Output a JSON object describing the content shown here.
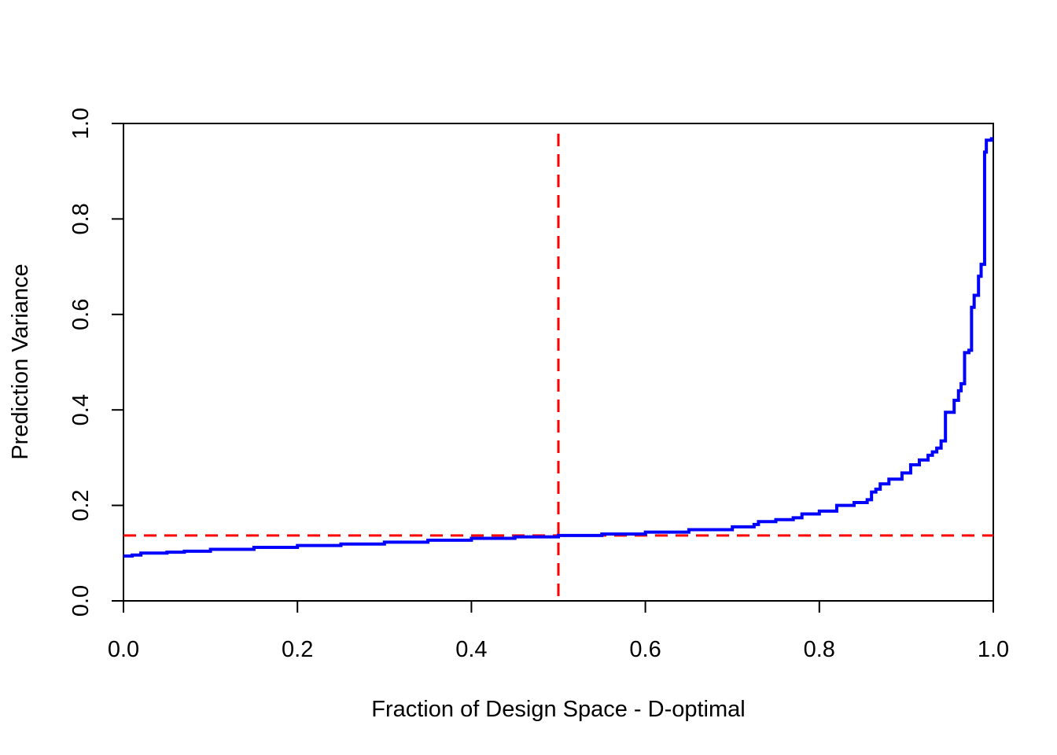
{
  "chart_data": {
    "type": "line",
    "title": "",
    "xlabel": "Fraction of Design Space - D-optimal",
    "ylabel": "Prediction Variance",
    "xlim": [
      0.0,
      1.0
    ],
    "ylim": [
      0.0,
      1.0
    ],
    "x_ticks": [
      "0.0",
      "0.2",
      "0.4",
      "0.6",
      "0.8",
      "1.0"
    ],
    "y_ticks": [
      "0.0",
      "0.2",
      "0.4",
      "0.6",
      "0.8",
      "1.0"
    ],
    "grid": false,
    "legend": "none",
    "series": [
      {
        "color": "#0000ff",
        "style": "step",
        "points": [
          [
            0.0,
            0.094
          ],
          [
            0.01,
            0.096
          ],
          [
            0.02,
            0.1
          ],
          [
            0.05,
            0.102
          ],
          [
            0.07,
            0.104
          ],
          [
            0.1,
            0.108
          ],
          [
            0.15,
            0.112
          ],
          [
            0.2,
            0.116
          ],
          [
            0.25,
            0.119
          ],
          [
            0.3,
            0.123
          ],
          [
            0.35,
            0.127
          ],
          [
            0.4,
            0.131
          ],
          [
            0.45,
            0.134
          ],
          [
            0.5,
            0.137
          ],
          [
            0.55,
            0.14
          ],
          [
            0.6,
            0.144
          ],
          [
            0.65,
            0.149
          ],
          [
            0.7,
            0.155
          ],
          [
            0.725,
            0.16
          ],
          [
            0.73,
            0.166
          ],
          [
            0.75,
            0.17
          ],
          [
            0.77,
            0.174
          ],
          [
            0.78,
            0.182
          ],
          [
            0.8,
            0.188
          ],
          [
            0.82,
            0.2
          ],
          [
            0.84,
            0.206
          ],
          [
            0.855,
            0.212
          ],
          [
            0.86,
            0.228
          ],
          [
            0.865,
            0.234
          ],
          [
            0.87,
            0.245
          ],
          [
            0.88,
            0.255
          ],
          [
            0.895,
            0.268
          ],
          [
            0.905,
            0.285
          ],
          [
            0.915,
            0.295
          ],
          [
            0.925,
            0.305
          ],
          [
            0.93,
            0.312
          ],
          [
            0.935,
            0.32
          ],
          [
            0.94,
            0.335
          ],
          [
            0.945,
            0.395
          ],
          [
            0.955,
            0.42
          ],
          [
            0.96,
            0.44
          ],
          [
            0.963,
            0.455
          ],
          [
            0.967,
            0.52
          ],
          [
            0.972,
            0.525
          ],
          [
            0.975,
            0.615
          ],
          [
            0.978,
            0.64
          ],
          [
            0.983,
            0.68
          ],
          [
            0.986,
            0.705
          ],
          [
            0.99,
            0.94
          ],
          [
            0.992,
            0.965
          ],
          [
            0.998,
            0.968
          ]
        ]
      }
    ],
    "reference_lines": [
      {
        "orientation": "vertical",
        "value": 0.5,
        "color": "#ff0000",
        "style": "dashed"
      },
      {
        "orientation": "horizontal",
        "value": 0.137,
        "color": "#ff0000",
        "style": "dashed"
      }
    ]
  }
}
